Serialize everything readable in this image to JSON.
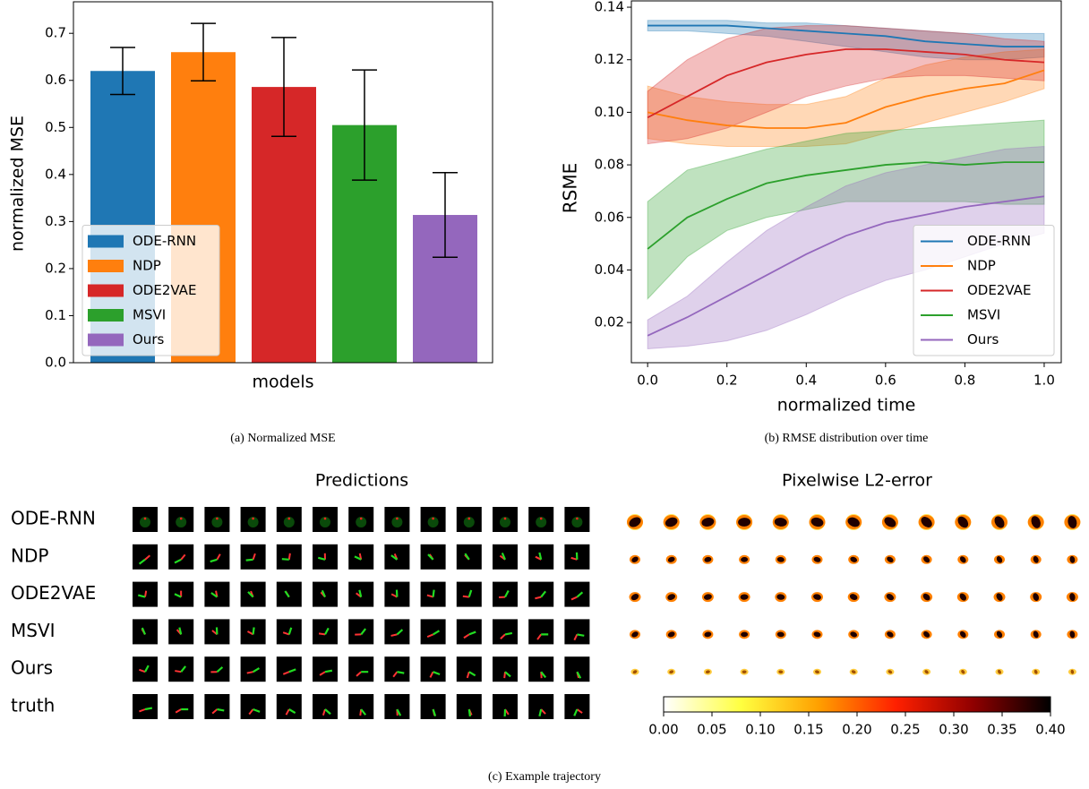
{
  "chart_data": [
    {
      "type": "bar",
      "caption": "(a) Normalized MSE",
      "xlabel": "models",
      "ylabel": "normalized MSE",
      "categories": [
        "ODE-RNN",
        "NDP",
        "ODE2VAE",
        "MSVI",
        "Ours"
      ],
      "colors": [
        "#1f77b4",
        "#ff7f0e",
        "#d62728",
        "#2ca02c",
        "#9467bd"
      ],
      "values": [
        0.62,
        0.66,
        0.586,
        0.505,
        0.314
      ],
      "errors": [
        0.05,
        0.061,
        0.105,
        0.117,
        0.09
      ],
      "ylim": [
        0,
        0.767
      ],
      "yticks": [
        {
          "value": 0,
          "label": "0.0"
        },
        0.1,
        0.2,
        0.3,
        0.4,
        0.5,
        0.6,
        0.7
      ],
      "legend": "lower left",
      "grid": false
    },
    {
      "type": "line",
      "caption": "(b) RMSE distribution over time",
      "xlabel": "normalized time",
      "ylabel": "RSME",
      "x": [
        0,
        0.1,
        0.2,
        0.3,
        0.4,
        0.5,
        0.6,
        0.7,
        0.8,
        0.9,
        1
      ],
      "series": [
        {
          "name": "ODE-RNN",
          "color": "#1f77b4",
          "values": [
            0.133,
            0.133,
            0.133,
            0.132,
            0.131,
            0.13,
            0.129,
            0.127,
            0.126,
            0.125,
            0.125
          ],
          "lower": [
            0.131,
            0.131,
            0.13,
            0.129,
            0.127,
            0.125,
            0.123,
            0.121,
            0.12,
            0.12,
            0.121
          ],
          "upper": [
            0.135,
            0.135,
            0.135,
            0.134,
            0.134,
            0.133,
            0.132,
            0.131,
            0.13,
            0.13,
            0.13
          ]
        },
        {
          "name": "NDP",
          "color": "#ff7f0e",
          "values": [
            0.1,
            0.097,
            0.095,
            0.094,
            0.094,
            0.096,
            0.102,
            0.106,
            0.109,
            0.111,
            0.116
          ],
          "lower": [
            0.09,
            0.088,
            0.087,
            0.087,
            0.087,
            0.088,
            0.092,
            0.096,
            0.1,
            0.104,
            0.109
          ],
          "upper": [
            0.11,
            0.106,
            0.104,
            0.103,
            0.103,
            0.106,
            0.113,
            0.118,
            0.121,
            0.123,
            0.124
          ]
        },
        {
          "name": "ODE2VAE",
          "color": "#d62728",
          "values": [
            0.098,
            0.106,
            0.114,
            0.119,
            0.122,
            0.124,
            0.124,
            0.123,
            0.122,
            0.12,
            0.119
          ],
          "lower": [
            0.088,
            0.09,
            0.094,
            0.1,
            0.106,
            0.11,
            0.113,
            0.114,
            0.114,
            0.113,
            0.112
          ],
          "upper": [
            0.108,
            0.12,
            0.128,
            0.132,
            0.133,
            0.133,
            0.132,
            0.131,
            0.13,
            0.128,
            0.127
          ]
        },
        {
          "name": "MSVI",
          "color": "#2ca02c",
          "values": [
            0.048,
            0.06,
            0.067,
            0.073,
            0.076,
            0.078,
            0.08,
            0.081,
            0.08,
            0.081,
            0.081
          ],
          "lower": [
            0.029,
            0.045,
            0.055,
            0.06,
            0.063,
            0.066,
            0.066,
            0.066,
            0.066,
            0.065,
            0.065
          ],
          "upper": [
            0.066,
            0.078,
            0.082,
            0.086,
            0.089,
            0.092,
            0.093,
            0.094,
            0.095,
            0.096,
            0.097
          ]
        },
        {
          "name": "Ours",
          "color": "#9467bd",
          "values": [
            0.015,
            0.022,
            0.03,
            0.038,
            0.046,
            0.053,
            0.058,
            0.061,
            0.064,
            0.066,
            0.068
          ],
          "lower": [
            0.01,
            0.011,
            0.013,
            0.017,
            0.023,
            0.03,
            0.036,
            0.04,
            0.045,
            0.05,
            0.054
          ],
          "upper": [
            0.021,
            0.03,
            0.043,
            0.055,
            0.064,
            0.072,
            0.077,
            0.08,
            0.083,
            0.086,
            0.087
          ]
        }
      ],
      "xlim": [
        -0.041,
        1.043
      ],
      "ylim": [
        0.0047,
        0.1424
      ],
      "xticks": [
        {
          "value": 0,
          "label": "0.0"
        },
        0.2,
        0.4,
        0.6,
        0.8,
        {
          "value": 1,
          "label": "1.0"
        }
      ],
      "yticks": [
        0.02,
        0.04,
        0.06,
        0.08,
        {
          "value": 0.1,
          "label": "0.10"
        },
        0.12,
        0.14
      ],
      "legend": "lower right",
      "grid": false
    },
    {
      "type": "image-grid",
      "title": "Predictions",
      "rows": [
        "ODE-RNN",
        "NDP",
        "ODE2VAE",
        "MSVI",
        "Ours",
        "truth"
      ]
    },
    {
      "type": "colorbar",
      "title": "Pixelwise L2-error",
      "xlim": [
        0,
        0.4
      ],
      "xticks": [
        {
          "value": 0,
          "label": "0.00"
        },
        0.05,
        {
          "value": 0.1,
          "label": "0.10"
        },
        0.15,
        {
          "value": 0.2,
          "label": "0.20"
        },
        0.25,
        {
          "value": 0.3,
          "label": "0.30"
        },
        0.35,
        {
          "value": 0.4,
          "label": "0.40"
        }
      ],
      "colormap": [
        "#ffffff",
        "#ffff40",
        "#ffa000",
        "#ff2000",
        "#900000",
        "#000000"
      ]
    }
  ],
  "caption": "(c) Example trajectory"
}
